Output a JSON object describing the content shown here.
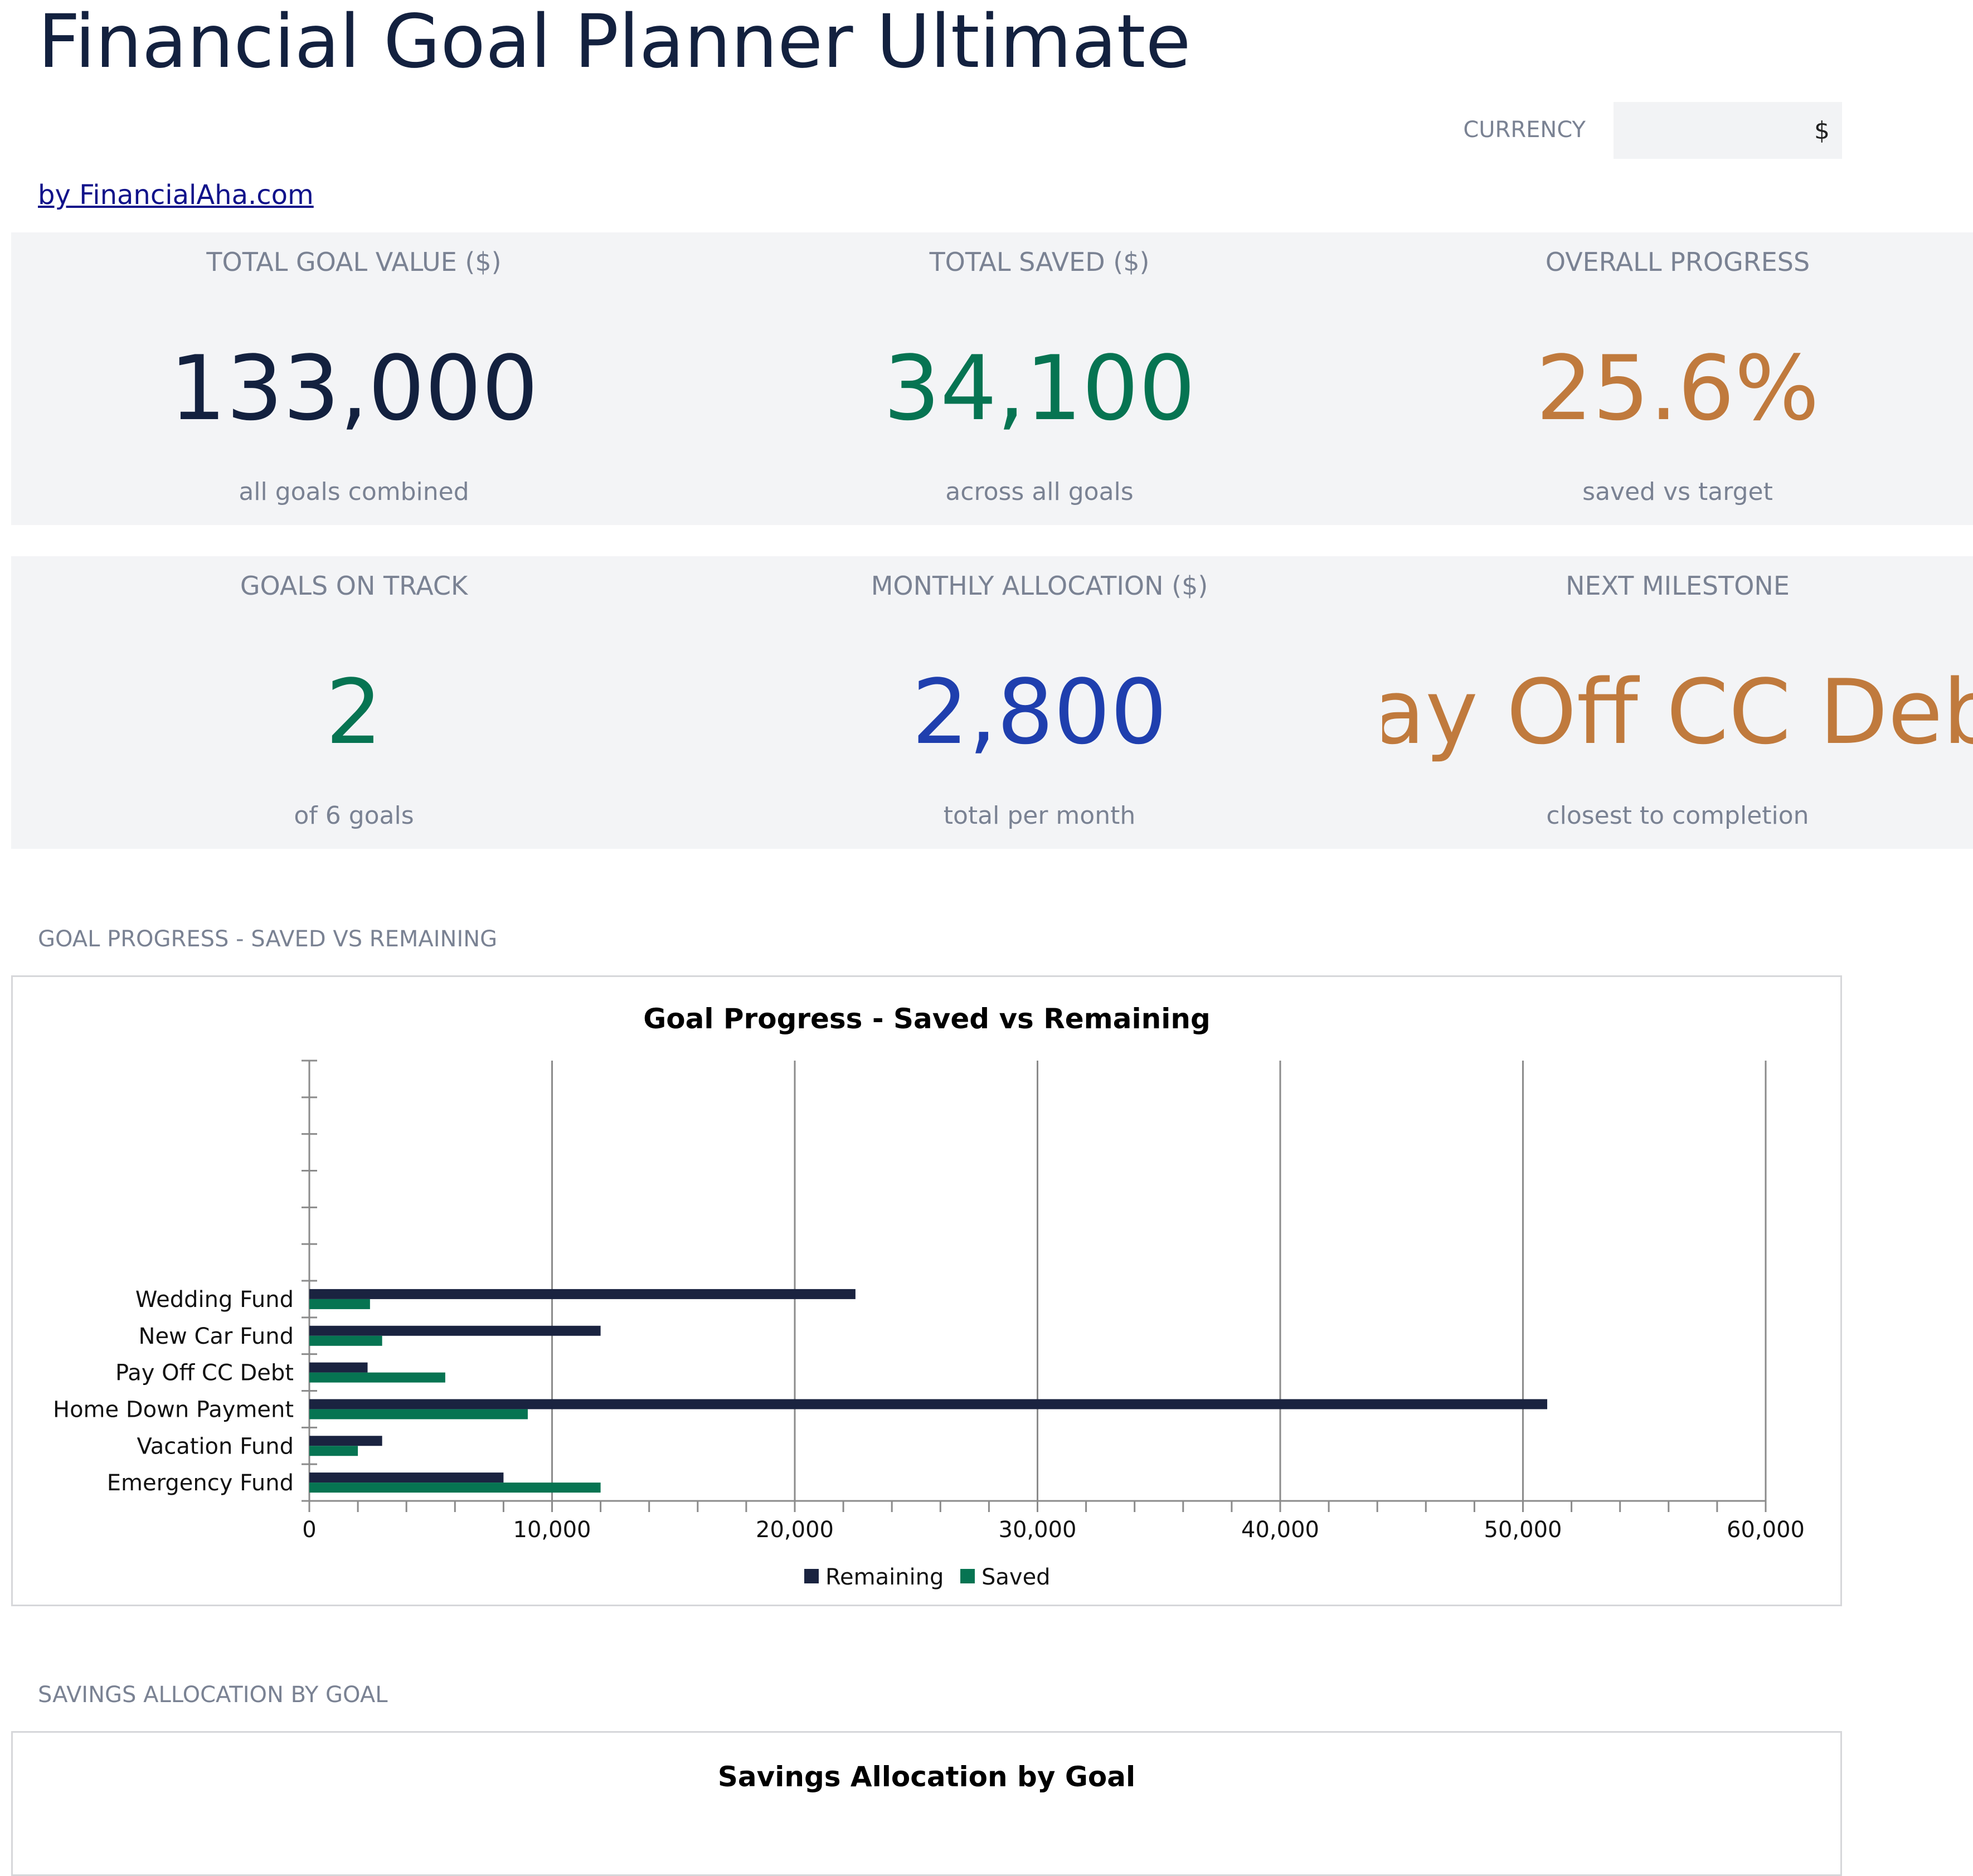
{
  "header": {
    "title": "Financial Goal Planner Ultimate",
    "currency_label": "CURRENCY",
    "currency_value": "$",
    "byline": "by FinancialAha.com"
  },
  "kpis": [
    {
      "label": "TOTAL GOAL VALUE ($)",
      "value": "133,000",
      "sub": "all goals combined",
      "color": "#13213f"
    },
    {
      "label": "TOTAL SAVED ($)",
      "value": "34,100",
      "sub": "across all goals",
      "color": "#067452"
    },
    {
      "label": "OVERALL PROGRESS",
      "value": "25.6%",
      "sub": "saved vs target",
      "color": "#c07a3d"
    },
    {
      "label": "GOALS ON TRACK",
      "value": "2",
      "sub": "of 6 goals",
      "color": "#067452"
    },
    {
      "label": "MONTHLY ALLOCATION ($)",
      "value": "2,800",
      "sub": "total per month",
      "color": "#1f3fae"
    },
    {
      "label": "NEXT MILESTONE",
      "value": "Pay Off CC Debt",
      "sub": "closest to completion",
      "color": "#c07a3d"
    }
  ],
  "sections": {
    "progress_title": "GOAL PROGRESS - SAVED VS REMAINING",
    "allocation_title": "SAVINGS ALLOCATION BY GOAL"
  },
  "colors": {
    "remaining": "#1a2340",
    "saved": "#067452",
    "grid": "#8b8b8b"
  },
  "chart_data": [
    {
      "type": "bar",
      "orientation": "horizontal",
      "title": "Goal Progress - Saved vs Remaining",
      "categories": [
        "Emergency Fund",
        "Vacation Fund",
        "Home Down Payment",
        "Pay Off CC Debt",
        "New Car Fund",
        "Wedding Fund"
      ],
      "series": [
        {
          "name": "Remaining",
          "values": [
            8000,
            3000,
            51000,
            2400,
            12000,
            22500
          ]
        },
        {
          "name": "Saved",
          "values": [
            12000,
            2000,
            9000,
            5600,
            3000,
            2500
          ]
        }
      ],
      "xlim": [
        0,
        60000
      ],
      "xticks": [
        "0",
        "10,000",
        "20,000",
        "30,000",
        "40,000",
        "50,000",
        "60,000"
      ],
      "grid": true,
      "legend": "bottom"
    },
    {
      "type": "pie",
      "title": "Savings Allocation by Goal"
    }
  ]
}
